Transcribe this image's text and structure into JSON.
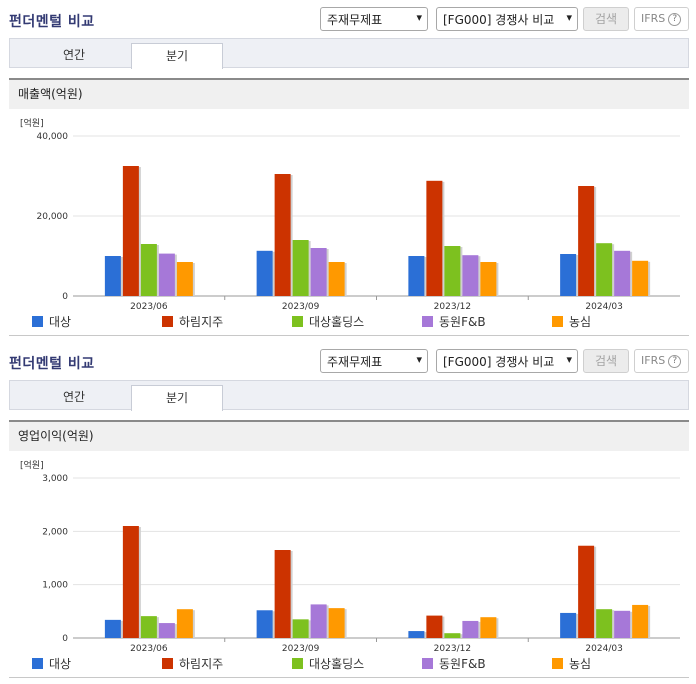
{
  "colors": {
    "대상": "#2b6fd6",
    "하림지주": "#cc3300",
    "대상홀딩스": "#7dc11f",
    "동원F&B": "#a678d8",
    "농심": "#ff9900"
  },
  "panels": [
    {
      "title": "펀더멘털 비교",
      "select1": "주재무제표",
      "select2": "[FG000] 경쟁사 비교",
      "search_label": "검색",
      "ifrs_label": "IFRS",
      "tabs": [
        "연간",
        "분기"
      ],
      "active_tab": 1,
      "metric_label": "매출액(억원)",
      "unit_label": "[억원]",
      "chart_data": {
        "type": "bar",
        "title": "매출액(억원)",
        "ylabel": "[억원]",
        "ylim": [
          0,
          40000
        ],
        "yticks": [
          "0",
          "20,000",
          "40,000"
        ],
        "categories": [
          "2023/06",
          "2023/09",
          "2023/12",
          "2024/03"
        ],
        "series": [
          {
            "name": "대상",
            "values": [
              10000,
              11300,
              10000,
              10500
            ]
          },
          {
            "name": "하림지주",
            "values": [
              32500,
              30500,
              28800,
              27500
            ]
          },
          {
            "name": "대상홀딩스",
            "values": [
              13000,
              14000,
              12500,
              13200
            ]
          },
          {
            "name": "동원F&B",
            "values": [
              10600,
              12000,
              10200,
              11300
            ]
          },
          {
            "name": "농심",
            "values": [
              8500,
              8500,
              8500,
              8800
            ]
          }
        ],
        "legend": "bottom"
      }
    },
    {
      "title": "펀더멘털 비교",
      "select1": "주재무제표",
      "select2": "[FG000] 경쟁사 비교",
      "search_label": "검색",
      "ifrs_label": "IFRS",
      "tabs": [
        "연간",
        "분기"
      ],
      "active_tab": 1,
      "metric_label": "영업이익(억원)",
      "unit_label": "[억원]",
      "chart_data": {
        "type": "bar",
        "title": "영업이익(억원)",
        "ylabel": "[억원]",
        "ylim": [
          0,
          3000
        ],
        "yticks": [
          "0",
          "1,000",
          "2,000",
          "3,000"
        ],
        "categories": [
          "2023/06",
          "2023/09",
          "2023/12",
          "2024/03"
        ],
        "series": [
          {
            "name": "대상",
            "values": [
              340,
              520,
              130,
              470
            ]
          },
          {
            "name": "하림지주",
            "values": [
              2100,
              1650,
              420,
              1730
            ]
          },
          {
            "name": "대상홀딩스",
            "values": [
              410,
              350,
              90,
              540
            ]
          },
          {
            "name": "동원F&B",
            "values": [
              280,
              630,
              320,
              510
            ]
          },
          {
            "name": "농심",
            "values": [
              540,
              560,
              390,
              620
            ]
          }
        ],
        "legend": "bottom"
      }
    }
  ]
}
